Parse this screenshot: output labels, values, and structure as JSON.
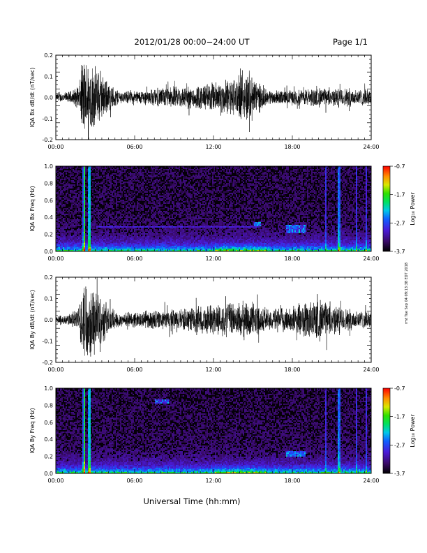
{
  "header": {
    "title": "2012/01/28  00:00−24:00 UT",
    "page": "Page 1/1"
  },
  "footer": {
    "xlabel": "Universal Time (hh:mm)",
    "side_note": "rmt Tue Sep 04 09:13:38 EDT 2018"
  },
  "chart_data": [
    {
      "type": "line",
      "title": "",
      "ylabel": "IQA Bx dB/dt (nT/sec)",
      "xlabel": "",
      "xlim": [
        0,
        24
      ],
      "ylim": [
        -0.2,
        0.2
      ],
      "xticks": [
        "00:00",
        "06:00",
        "12:00",
        "18:00",
        "24:00"
      ],
      "yticks": [
        "-0.2",
        "-0.1",
        "0.0",
        "0.1",
        "0.2"
      ],
      "envelope": {
        "hours": [
          0,
          1,
          1.8,
          2.0,
          2.2,
          2.5,
          3.0,
          3.5,
          4.0,
          4.5,
          5,
          6,
          7,
          8,
          9,
          10,
          11,
          12,
          13,
          14,
          14.8,
          15.3,
          16,
          17,
          18,
          19,
          20,
          21,
          22,
          23,
          24
        ],
        "amplitude": [
          0.02,
          0.03,
          0.06,
          0.2,
          0.2,
          0.2,
          0.16,
          0.12,
          0.08,
          0.05,
          0.03,
          0.035,
          0.04,
          0.05,
          0.055,
          0.06,
          0.065,
          0.08,
          0.09,
          0.11,
          0.14,
          0.09,
          0.04,
          0.035,
          0.04,
          0.045,
          0.05,
          0.045,
          0.05,
          0.045,
          0.04
        ]
      }
    },
    {
      "type": "heatmap",
      "title": "",
      "ylabel": "IQA Bx Freq (Hz)",
      "xlabel": "",
      "xlim": [
        0,
        24
      ],
      "ylim": [
        0,
        1.0
      ],
      "xticks": [
        "00:00",
        "06:00",
        "12:00",
        "18:00",
        "24:00"
      ],
      "yticks": [
        "0.0",
        "0.2",
        "0.4",
        "0.6",
        "0.8",
        "1.0"
      ],
      "colorbar": {
        "label": "Log₁₀ Power",
        "range": [
          -3.7,
          -0.7
        ],
        "ticks": [
          "-0.7",
          "-1.7",
          "-2.7",
          "-3.7"
        ]
      },
      "features": {
        "broadband_hours": [
          2.1,
          2.5,
          21.5
        ],
        "weak_lines_hours": [
          20.5,
          22.8,
          23.6
        ],
        "emission_patches": [
          {
            "hours": [
              15.0,
              15.6
            ],
            "freq_hz": [
              0.3,
              0.35
            ]
          },
          {
            "hours": [
              17.5,
              19.0
            ],
            "freq_hz": [
              0.22,
              0.32
            ]
          }
        ],
        "horizontal_line": {
          "hours": [
            3.0,
            15.5
          ],
          "freq_hz": 0.3
        }
      }
    },
    {
      "type": "line",
      "title": "",
      "ylabel": "IQA By dB/dt (nT/sec)",
      "xlabel": "",
      "xlim": [
        0,
        24
      ],
      "ylim": [
        -0.2,
        0.2
      ],
      "xticks": [
        "00:00",
        "06:00",
        "12:00",
        "18:00",
        "24:00"
      ],
      "yticks": [
        "-0.2",
        "-0.1",
        "0.0",
        "0.1",
        "0.2"
      ],
      "envelope": {
        "hours": [
          0,
          1,
          1.8,
          2.0,
          2.2,
          2.5,
          3.0,
          3.5,
          4.0,
          4.5,
          5,
          6,
          7,
          8,
          9,
          10,
          11,
          12,
          13,
          14,
          14.8,
          15.3,
          16,
          17,
          18,
          19,
          20,
          21,
          22,
          23,
          24
        ],
        "amplitude": [
          0.02,
          0.03,
          0.06,
          0.2,
          0.2,
          0.2,
          0.17,
          0.13,
          0.08,
          0.05,
          0.035,
          0.04,
          0.045,
          0.05,
          0.055,
          0.06,
          0.07,
          0.08,
          0.085,
          0.09,
          0.1,
          0.08,
          0.06,
          0.06,
          0.065,
          0.1,
          0.11,
          0.08,
          0.06,
          0.05,
          0.04
        ]
      }
    },
    {
      "type": "heatmap",
      "title": "",
      "ylabel": "IQA By Freq (Hz)",
      "xlabel": "",
      "xlim": [
        0,
        24
      ],
      "ylim": [
        0,
        1.0
      ],
      "xticks": [
        "00:00",
        "06:00",
        "12:00",
        "18:00",
        "24:00"
      ],
      "yticks": [
        "0.0",
        "0.2",
        "0.4",
        "0.6",
        "0.8",
        "1.0"
      ],
      "colorbar": {
        "label": "Log₁₀ Power",
        "range": [
          -3.7,
          -0.7
        ],
        "ticks": [
          "-0.7",
          "-1.7",
          "-2.7",
          "-3.7"
        ]
      },
      "features": {
        "broadband_hours": [
          2.1,
          2.5,
          21.5
        ],
        "weak_lines_hours": [
          20.5,
          22.8,
          23.6
        ],
        "emission_patches": [
          {
            "hours": [
              7.5,
              8.5
            ],
            "freq_hz": [
              0.82,
              0.88
            ]
          },
          {
            "hours": [
              17.5,
              19.0
            ],
            "freq_hz": [
              0.2,
              0.27
            ]
          }
        ],
        "horizontal_line": null
      }
    }
  ]
}
